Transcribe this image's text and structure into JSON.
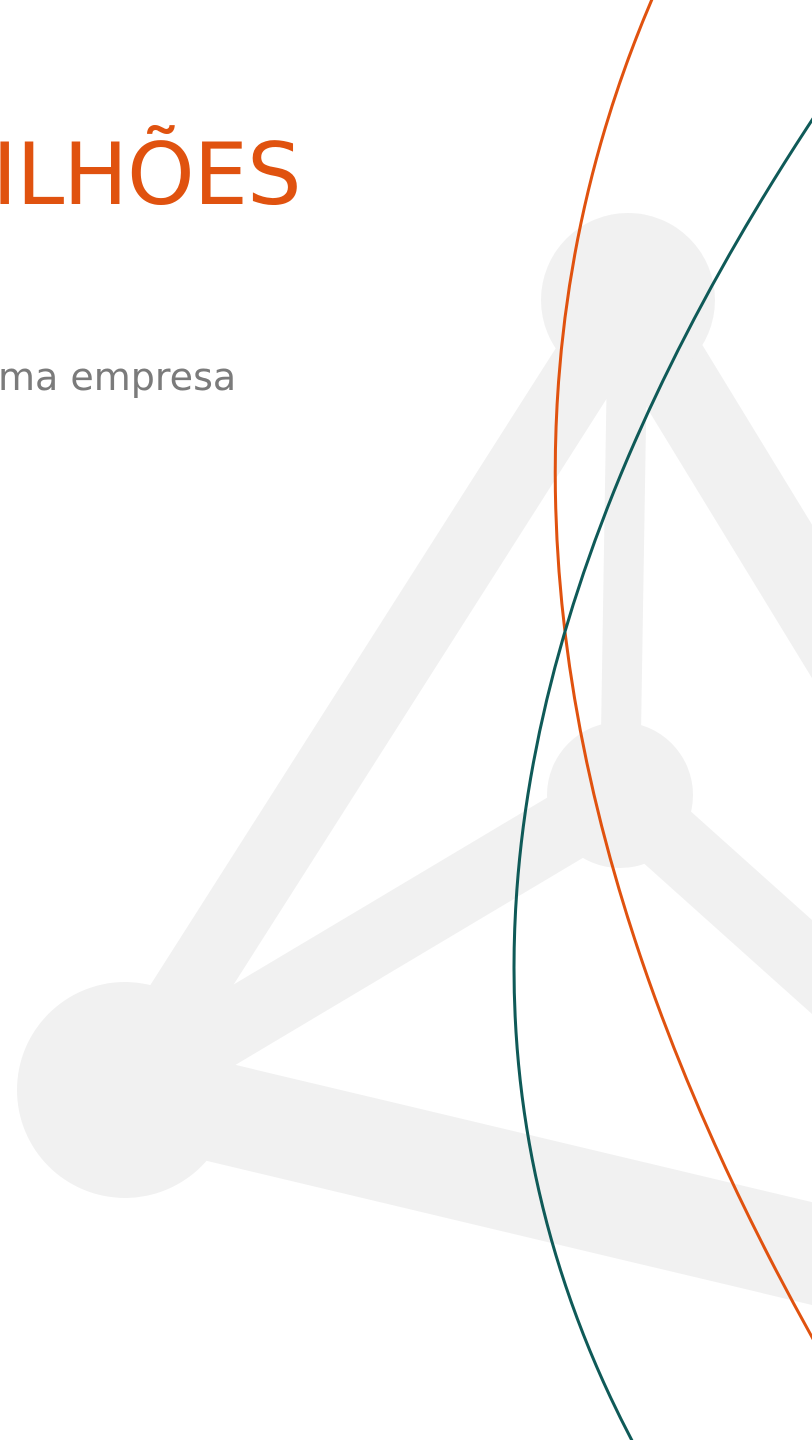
{
  "headline": "ILHÕES",
  "subline": "ma empresa",
  "colors": {
    "headline": "#e0520f",
    "subline": "#7b7b7b",
    "network_graphic": "#f1f1f1",
    "orange_arc": "#e0520f",
    "teal_arc": "#0f5a58"
  },
  "icons": {
    "background": "network-nodes-graphic"
  }
}
